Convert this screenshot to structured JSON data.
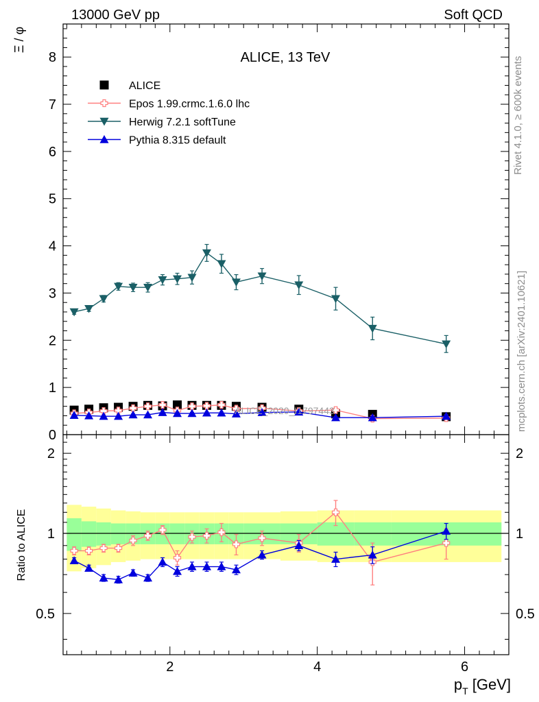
{
  "header": {
    "left": "13000 GeV pp",
    "right": "Soft QCD"
  },
  "side_text": {
    "rivet": "Rivet 4.1.0, ≥ 600k events",
    "mcplots": "mcplots.cern.ch [arXiv:2401.10621]"
  },
  "colors": {
    "alice": "#000000",
    "epos": "#ff7f7f",
    "herwig": "#1a5f66",
    "pythia": "#0000dd",
    "band_inner": "#99ff99",
    "band_outer": "#ffff99"
  },
  "chart_data": [
    {
      "type": "scatter",
      "title": "ALICE, 13 TeV",
      "ylabel": "Ξ / φ",
      "xlabel": "",
      "xlim": [
        0.55,
        6.6
      ],
      "ylim": [
        0,
        8.7
      ],
      "yticks": [
        0,
        1,
        2,
        3,
        4,
        5,
        6,
        7,
        8
      ],
      "ytick_labels": [
        "0",
        "1",
        "2",
        "3",
        "4",
        "5",
        "6",
        "7",
        "8"
      ],
      "watermark": "ALICE_2020_I1797443",
      "x": [
        0.7,
        0.9,
        1.1,
        1.3,
        1.5,
        1.7,
        1.9,
        2.1,
        2.3,
        2.5,
        2.7,
        2.9,
        3.25,
        3.75,
        4.25,
        4.75,
        5.75
      ],
      "legend": [
        {
          "key": "alice",
          "label": "ALICE",
          "marker": "square"
        },
        {
          "key": "epos",
          "label": "Epos 1.99.crmc.1.6.0 lhc",
          "marker": "open-cross"
        },
        {
          "key": "herwig",
          "label": "Herwig 7.2.1 softTune",
          "marker": "triangle-down"
        },
        {
          "key": "pythia",
          "label": "Pythia 8.315 default",
          "marker": "triangle-up"
        }
      ],
      "series": [
        {
          "key": "alice",
          "name": "ALICE",
          "values": [
            0.52,
            0.54,
            0.57,
            0.58,
            0.6,
            0.62,
            0.61,
            0.63,
            0.62,
            0.62,
            0.62,
            0.6,
            0.58,
            0.54,
            0.44,
            0.43,
            0.38
          ],
          "errors": [
            0.02,
            0.02,
            0.02,
            0.02,
            0.02,
            0.02,
            0.02,
            0.02,
            0.02,
            0.02,
            0.02,
            0.02,
            0.02,
            0.02,
            0.03,
            0.03,
            0.03
          ]
        },
        {
          "key": "epos",
          "name": "Epos 1.99.crmc.1.6.0 lhc",
          "values": [
            0.45,
            0.47,
            0.5,
            0.51,
            0.56,
            0.6,
            0.63,
            0.51,
            0.6,
            0.61,
            0.63,
            0.55,
            0.56,
            0.5,
            0.52,
            0.34,
            0.35
          ],
          "errors": [
            0.03,
            0.03,
            0.03,
            0.03,
            0.03,
            0.03,
            0.03,
            0.03,
            0.04,
            0.04,
            0.05,
            0.05,
            0.04,
            0.04,
            0.06,
            0.06,
            0.05
          ]
        },
        {
          "key": "herwig",
          "name": "Herwig 7.2.1 softTune",
          "values": [
            2.6,
            2.67,
            2.88,
            3.14,
            3.12,
            3.12,
            3.28,
            3.3,
            3.33,
            3.85,
            3.62,
            3.23,
            3.36,
            3.17,
            2.88,
            2.25,
            1.92
          ],
          "errors": [
            0.05,
            0.06,
            0.07,
            0.08,
            0.09,
            0.1,
            0.11,
            0.12,
            0.14,
            0.18,
            0.2,
            0.16,
            0.16,
            0.2,
            0.24,
            0.24,
            0.18
          ]
        },
        {
          "key": "pythia",
          "name": "Pythia 8.315 default",
          "values": [
            0.41,
            0.4,
            0.39,
            0.39,
            0.42,
            0.42,
            0.47,
            0.45,
            0.45,
            0.46,
            0.46,
            0.44,
            0.47,
            0.48,
            0.36,
            0.36,
            0.39
          ],
          "errors": [
            0.02,
            0.02,
            0.02,
            0.02,
            0.02,
            0.02,
            0.02,
            0.02,
            0.02,
            0.02,
            0.02,
            0.02,
            0.02,
            0.02,
            0.02,
            0.03,
            0.03
          ]
        }
      ]
    },
    {
      "type": "scatter",
      "title": "",
      "ylabel": "Ratio to ALICE",
      "xlabel": "p_T [GeV]",
      "xlim": [
        0.55,
        6.6
      ],
      "ylim": [
        0.35,
        2.35
      ],
      "xticks": [
        2,
        4,
        6
      ],
      "xtick_labels": [
        "2",
        "4",
        "6"
      ],
      "yticks": [
        0.5,
        1,
        2
      ],
      "ytick_labels": [
        "0.5",
        "1",
        "2"
      ],
      "reference": 1,
      "band_edges": [
        0.6,
        0.8,
        1.0,
        1.2,
        1.4,
        1.6,
        1.8,
        2.0,
        2.2,
        2.4,
        2.6,
        2.8,
        3.0,
        3.5,
        4.0,
        4.5,
        5.0,
        6.5
      ],
      "band_inner": [
        0.14,
        0.11,
        0.1,
        0.09,
        0.09,
        0.09,
        0.09,
        0.09,
        0.09,
        0.09,
        0.09,
        0.09,
        0.09,
        0.09,
        0.1,
        0.1,
        0.1
      ],
      "band_outer": [
        0.28,
        0.26,
        0.24,
        0.22,
        0.21,
        0.2,
        0.2,
        0.2,
        0.2,
        0.2,
        0.2,
        0.2,
        0.2,
        0.21,
        0.22,
        0.22,
        0.22
      ],
      "x": [
        0.7,
        0.9,
        1.1,
        1.3,
        1.5,
        1.7,
        1.9,
        2.1,
        2.3,
        2.5,
        2.7,
        2.9,
        3.25,
        3.75,
        4.25,
        4.75,
        5.75
      ],
      "series": [
        {
          "key": "epos",
          "name": "Epos 1.99.crmc.1.6.0 lhc",
          "values": [
            0.86,
            0.86,
            0.88,
            0.88,
            0.94,
            0.98,
            1.03,
            0.81,
            0.97,
            0.98,
            1.01,
            0.91,
            0.96,
            0.92,
            1.2,
            0.78,
            0.92
          ],
          "errors": [
            0.03,
            0.03,
            0.03,
            0.03,
            0.04,
            0.04,
            0.04,
            0.05,
            0.05,
            0.06,
            0.08,
            0.08,
            0.06,
            0.07,
            0.13,
            0.14,
            0.12
          ]
        },
        {
          "key": "pythia",
          "name": "Pythia 8.315 default",
          "values": [
            0.79,
            0.74,
            0.68,
            0.67,
            0.71,
            0.68,
            0.78,
            0.72,
            0.75,
            0.75,
            0.75,
            0.73,
            0.83,
            0.9,
            0.8,
            0.83,
            1.02
          ],
          "errors": [
            0.02,
            0.02,
            0.02,
            0.02,
            0.02,
            0.02,
            0.03,
            0.03,
            0.03,
            0.03,
            0.03,
            0.03,
            0.03,
            0.04,
            0.05,
            0.06,
            0.07
          ]
        }
      ]
    }
  ]
}
